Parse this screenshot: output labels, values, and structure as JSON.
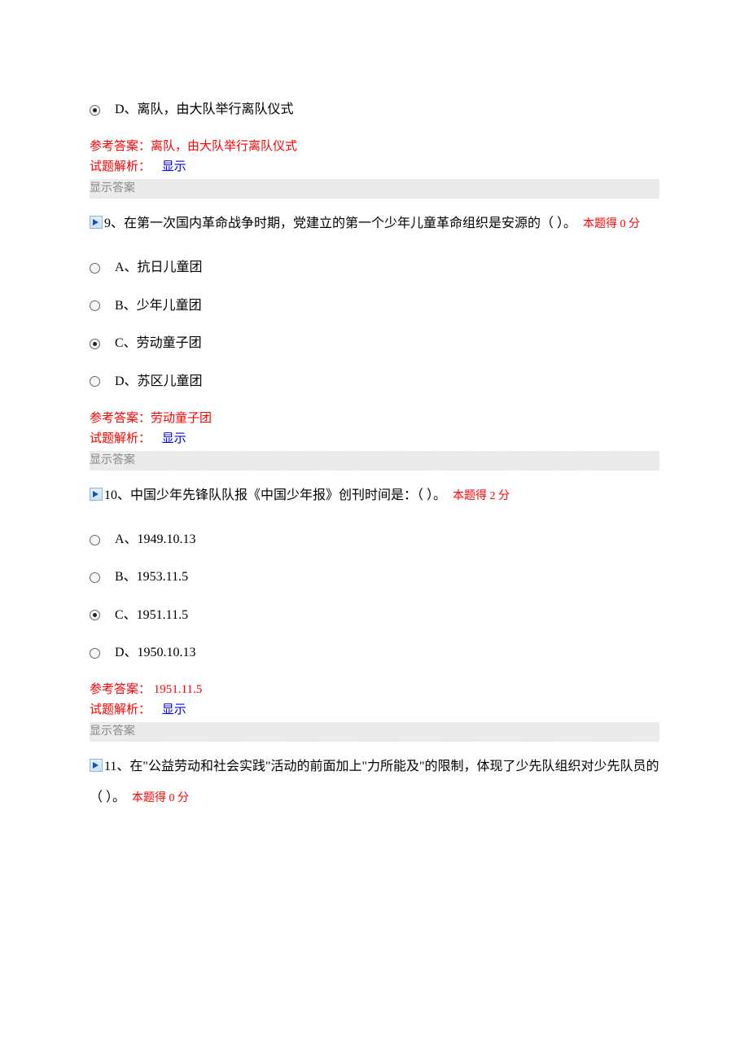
{
  "colors": {
    "text": "#000000",
    "red": "#ff0000",
    "blue": "#0000ff",
    "gray": "#888888",
    "bg": "#ffffff"
  },
  "common": {
    "answer_prefix": "参考答案：",
    "analysis_label": "试题解析：",
    "analysis_link": "显示",
    "show_answer": "显示答案"
  },
  "q8tail": {
    "option_d": "D、离队，由大队举行离队仪式",
    "answer": "离队，由大队举行离队仪式"
  },
  "q9": {
    "number": "9、",
    "text": "在第一次国内革命战争时期，党建立的第一个少年儿童革命组织是安源的（ ）。",
    "score": "本题得 0 分",
    "options": {
      "a": "A、抗日儿童团",
      "b": "B、少年儿童团",
      "c": "C、劳动童子团",
      "d": "D、苏区儿童团"
    },
    "answer": "劳动童子团"
  },
  "q10": {
    "number": "10、",
    "text": "中国少年先锋队队报《中国少年报》创刊时间是：（ ）。",
    "score": "本题得 2 分",
    "options": {
      "a": "A、1949.10.13",
      "b": "B、1953.11.5",
      "c": "C、1951.11.5",
      "d": "D、1950.10.13"
    },
    "answer": " 1951.11.5"
  },
  "q11": {
    "number": "11、",
    "text": "在\"公益劳动和社会实践\"活动的前面加上\"力所能及\"的限制，体现了少先队组织对少先队员的（ ）。",
    "score": "本题得 0 分"
  }
}
